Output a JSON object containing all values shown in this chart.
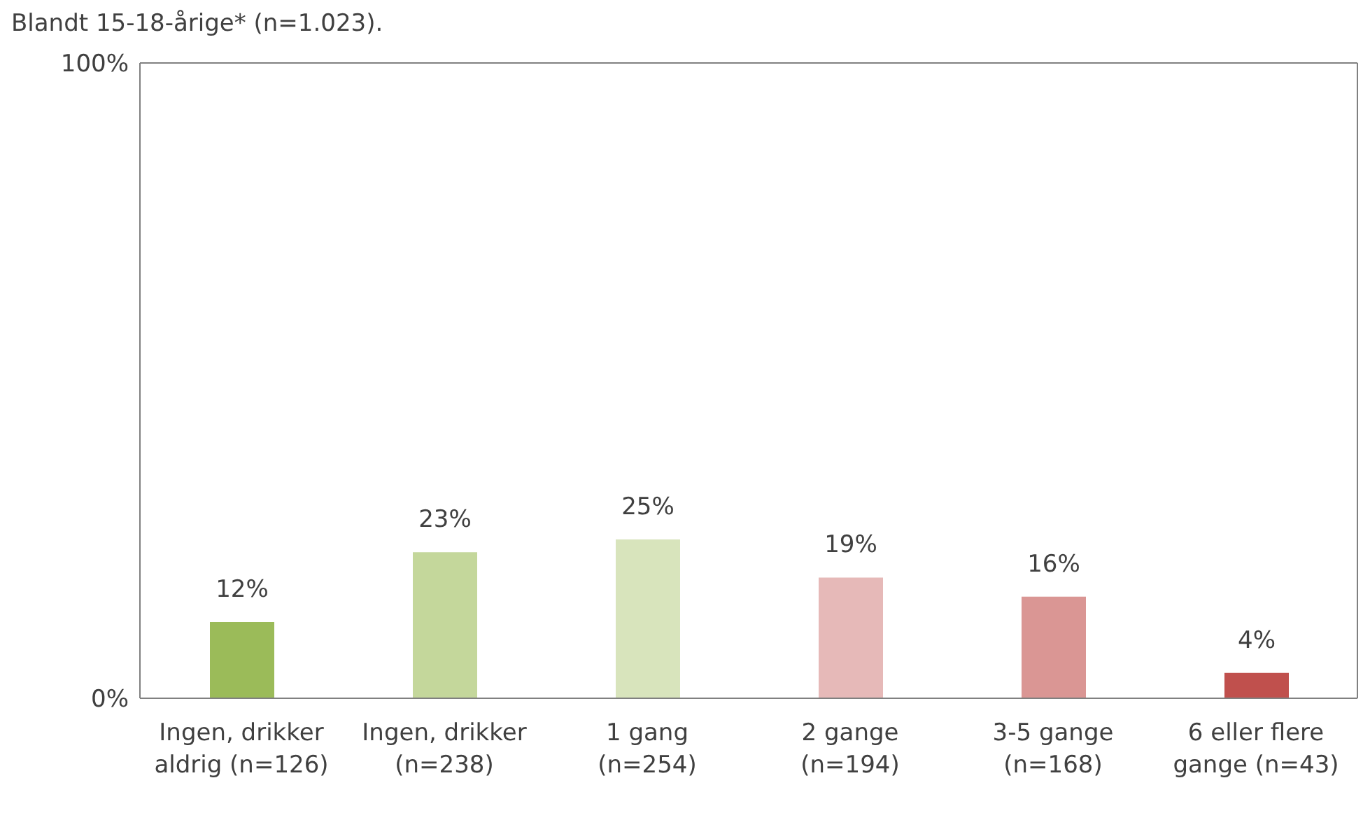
{
  "chart_data": {
    "type": "bar",
    "title": "Blandt 15-18-årige* (n=1.023).",
    "categories": [
      "Ingen, drikker\naldrig (n=126)",
      "Ingen, drikker\n(n=238)",
      "1 gang\n(n=254)",
      "2 gange\n(n=194)",
      "3-5 gange\n(n=168)",
      "6 eller flere\ngange (n=43)"
    ],
    "values": [
      12,
      23,
      25,
      19,
      16,
      4
    ],
    "value_labels": [
      "12%",
      "23%",
      "25%",
      "19%",
      "16%",
      "4%"
    ],
    "colors": [
      "#9bbb59",
      "#c4d79b",
      "#d8e4bc",
      "#e6b9b8",
      "#da9694",
      "#c0504d"
    ],
    "ylim": [
      0,
      100
    ],
    "yticks": [
      {
        "value": 0,
        "label": "0%"
      },
      {
        "value": 100,
        "label": "100%"
      }
    ],
    "grid": false
  }
}
